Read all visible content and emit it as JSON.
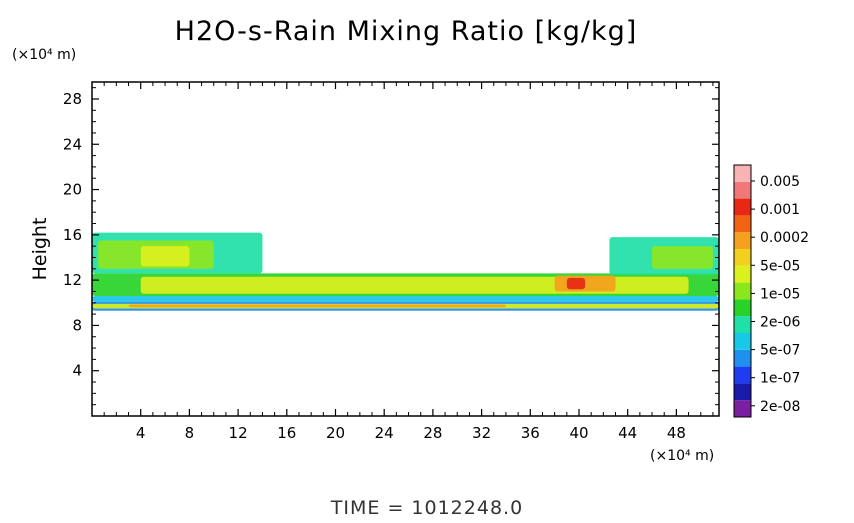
{
  "chart_data": {
    "type": "heatmap",
    "title": "H2O-s-Rain Mixing Ratio [kg/kg]",
    "ylabel": "Height",
    "y_unit": "(×10⁴ m)",
    "x_unit": "(×10⁴ m)",
    "footer": "TIME  =  1012248.0",
    "xlim": [
      0,
      51.5
    ],
    "ylim": [
      0,
      29.5
    ],
    "x_ticks": [
      4,
      8,
      12,
      16,
      20,
      24,
      28,
      32,
      36,
      40,
      44,
      48
    ],
    "y_ticks": [
      4,
      8,
      12,
      16,
      20,
      24,
      28
    ],
    "grid": false,
    "colorbar": {
      "position": "right",
      "labels": [
        "0.005",
        "0.001",
        "0.0002",
        "5e-05",
        "1e-05",
        "2e-06",
        "5e-07",
        "1e-07",
        "2e-08"
      ],
      "colors": [
        "#7a1fa0",
        "#1a1aa8",
        "#1f3cf0",
        "#1f8ff0",
        "#19c8e6",
        "#1fe0a8",
        "#28d228",
        "#8ce61e",
        "#dcf01e",
        "#f0d21e",
        "#f5a01e",
        "#f06414",
        "#e62814",
        "#f07878",
        "#f8b4b4"
      ]
    },
    "field_regions": [
      {
        "x": [
          0,
          51.5
        ],
        "y": [
          9.3,
          10.1
        ],
        "level": 3
      },
      {
        "x": [
          0,
          51.5
        ],
        "y": [
          9.5,
          9.9
        ],
        "level": 8
      },
      {
        "x": [
          3,
          34
        ],
        "y": [
          9.6,
          9.85
        ],
        "level": 10
      },
      {
        "x": [
          0,
          51.5
        ],
        "y": [
          10.1,
          10.6
        ],
        "level": 4
      },
      {
        "x": [
          0,
          51.5
        ],
        "y": [
          10.6,
          12.6
        ],
        "level": 6
      },
      {
        "x": [
          4,
          49
        ],
        "y": [
          10.8,
          12.3
        ],
        "level": 8
      },
      {
        "x": [
          0,
          14
        ],
        "y": [
          12.6,
          16.2
        ],
        "level": 5
      },
      {
        "x": [
          0.5,
          10
        ],
        "y": [
          13,
          15.5
        ],
        "level": 7
      },
      {
        "x": [
          4,
          8
        ],
        "y": [
          13.2,
          15
        ],
        "level": 8
      },
      {
        "x": [
          42.5,
          51.5
        ],
        "y": [
          12.5,
          15.8
        ],
        "level": 5
      },
      {
        "x": [
          46,
          51
        ],
        "y": [
          13,
          15
        ],
        "level": 7
      },
      {
        "x": [
          38,
          43
        ],
        "y": [
          11,
          12.4
        ],
        "level": 10
      },
      {
        "x": [
          39,
          40.5
        ],
        "y": [
          11.2,
          12.2
        ],
        "level": 12
      }
    ]
  }
}
